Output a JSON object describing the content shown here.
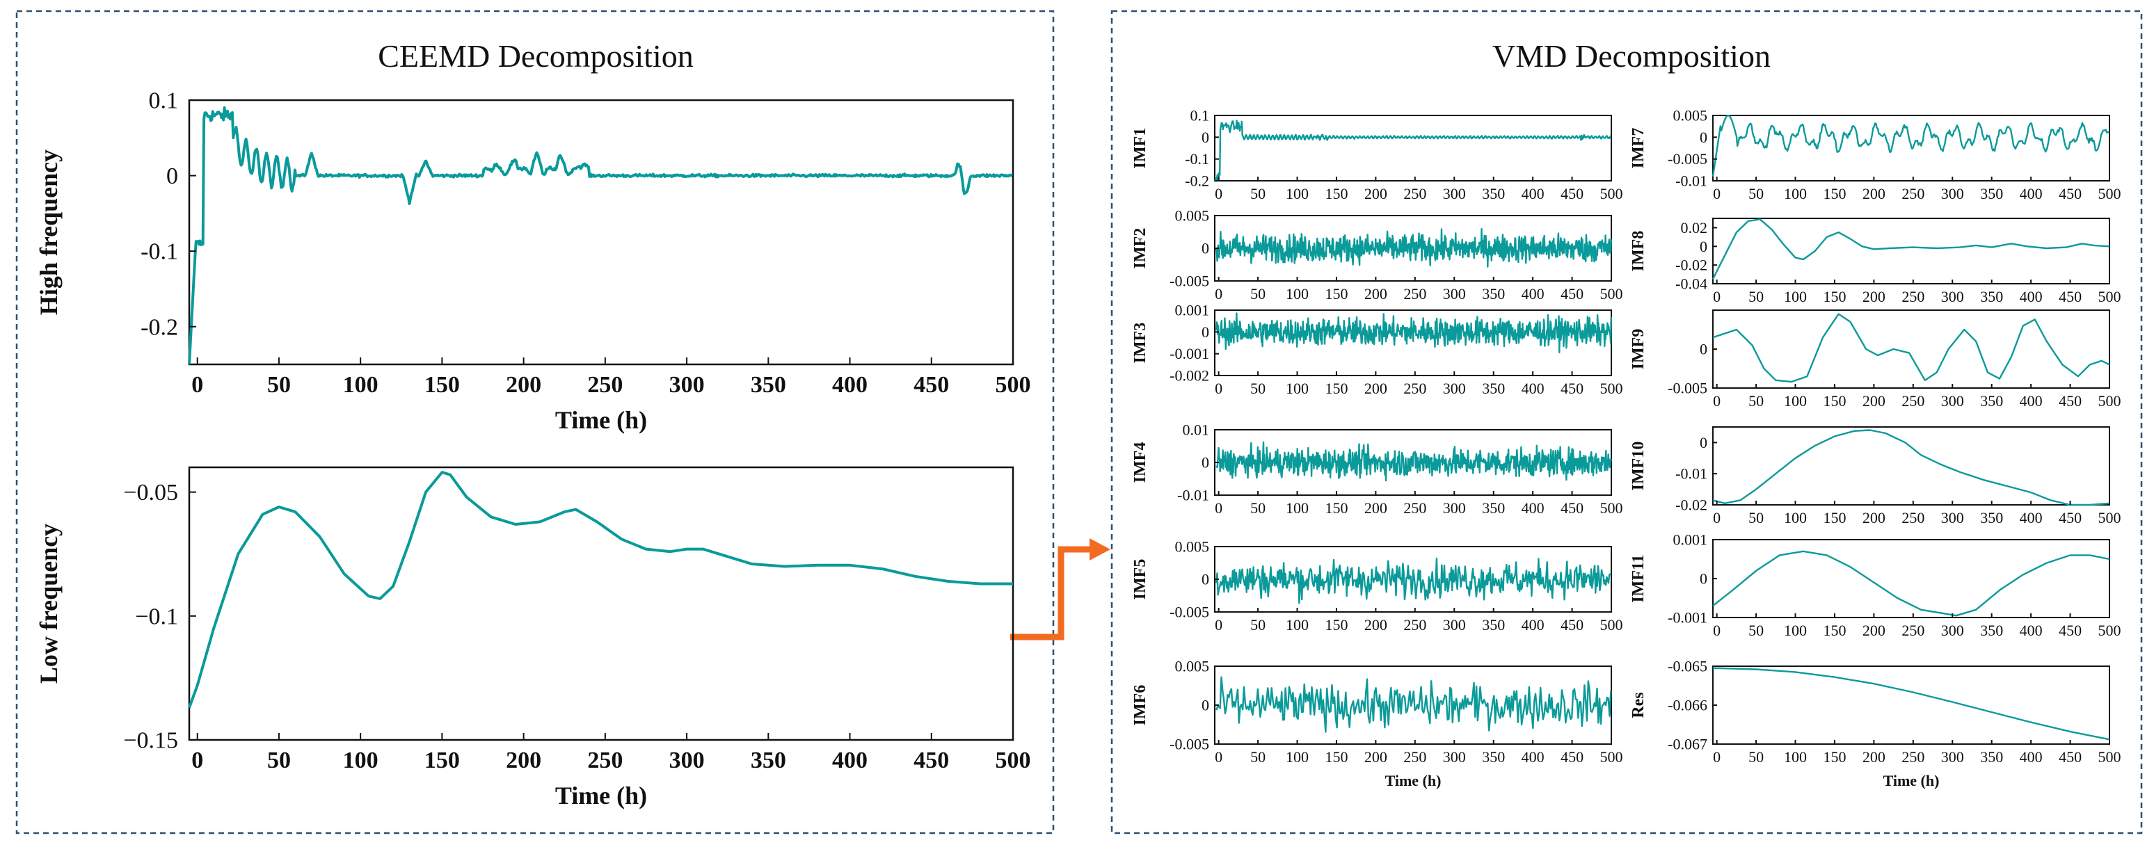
{
  "colors": {
    "line": "#0b9a9a",
    "frame": "#2f4f6f",
    "arrow": "#f26b21",
    "axis": "#111111"
  },
  "panels": {
    "left": {
      "title": "CEEMD Decomposition"
    },
    "right": {
      "title": "VMD Decomposition"
    }
  },
  "chart_data": [
    {
      "id": "ceemd-high",
      "type": "line",
      "panel": "left",
      "ylabel": "High frequency",
      "xlabel": "Time (h)",
      "xlim": [
        -5,
        500
      ],
      "ylim": [
        -0.25,
        0.1
      ],
      "xticks": [
        0,
        50,
        100,
        150,
        200,
        250,
        300,
        350,
        400,
        450,
        500
      ],
      "yticks": [
        0.1,
        0,
        -0.1,
        -0.2
      ],
      "ytick_labels": [
        "0.1",
        "0",
        "-0.1",
        "-0.2"
      ],
      "xtick_labels": [
        "0",
        "50",
        "100",
        "150",
        "200",
        "250",
        "300",
        "350",
        "400",
        "450",
        "500"
      ],
      "shape": "high"
    },
    {
      "id": "ceemd-low",
      "type": "line",
      "panel": "left",
      "ylabel": "Low frequency",
      "xlabel": "Time (h)",
      "xlim": [
        -5,
        500
      ],
      "ylim": [
        -0.15,
        -0.04
      ],
      "xticks": [
        0,
        50,
        100,
        150,
        200,
        250,
        300,
        350,
        400,
        450,
        500
      ],
      "yticks": [
        -0.05,
        -0.1,
        -0.15
      ],
      "ytick_labels": [
        "−0.05",
        "−0.1",
        "−0.15"
      ],
      "xtick_labels": [
        "0",
        "50",
        "100",
        "150",
        "200",
        "250",
        "300",
        "350",
        "400",
        "450",
        "500"
      ],
      "points": [
        [
          -5,
          -0.137
        ],
        [
          0,
          -0.128
        ],
        [
          10,
          -0.105
        ],
        [
          25,
          -0.075
        ],
        [
          40,
          -0.059
        ],
        [
          50,
          -0.056
        ],
        [
          60,
          -0.058
        ],
        [
          75,
          -0.068
        ],
        [
          90,
          -0.083
        ],
        [
          105,
          -0.092
        ],
        [
          112,
          -0.093
        ],
        [
          120,
          -0.088
        ],
        [
          130,
          -0.07
        ],
        [
          140,
          -0.05
        ],
        [
          150,
          -0.042
        ],
        [
          155,
          -0.043
        ],
        [
          165,
          -0.052
        ],
        [
          180,
          -0.06
        ],
        [
          195,
          -0.063
        ],
        [
          210,
          -0.062
        ],
        [
          225,
          -0.058
        ],
        [
          232,
          -0.057
        ],
        [
          245,
          -0.062
        ],
        [
          260,
          -0.069
        ],
        [
          275,
          -0.073
        ],
        [
          290,
          -0.074
        ],
        [
          300,
          -0.073
        ],
        [
          310,
          -0.073
        ],
        [
          325,
          -0.076
        ],
        [
          340,
          -0.079
        ],
        [
          360,
          -0.08
        ],
        [
          380,
          -0.0795
        ],
        [
          400,
          -0.0795
        ],
        [
          420,
          -0.081
        ],
        [
          440,
          -0.084
        ],
        [
          460,
          -0.086
        ],
        [
          480,
          -0.087
        ],
        [
          500,
          -0.087
        ]
      ]
    },
    {
      "id": "imf1",
      "type": "line",
      "panel": "right",
      "ylabel": "IMF1",
      "xlim": [
        -5,
        500
      ],
      "ylim": [
        -0.2,
        0.1
      ],
      "yticks": [
        0.1,
        0,
        -0.1,
        -0.2
      ],
      "ytick_labels": [
        "0.1",
        "0",
        "-0.1",
        "-0.2"
      ],
      "xticks": [
        0,
        50,
        100,
        150,
        200,
        250,
        300,
        350,
        400,
        450,
        500
      ],
      "xtick_labels": [
        "0",
        "50",
        "100",
        "150",
        "200",
        "250",
        "300",
        "350",
        "400",
        "450",
        "500"
      ],
      "shape": "imf1"
    },
    {
      "id": "imf2",
      "type": "line",
      "panel": "right",
      "ylabel": "IMF2",
      "xlim": [
        -5,
        500
      ],
      "ylim": [
        -0.005,
        0.005
      ],
      "yticks": [
        0.005,
        0,
        -0.005
      ],
      "ytick_labels": [
        "0.005",
        "0",
        "-0.005"
      ],
      "xticks": [
        0,
        50,
        100,
        150,
        200,
        250,
        300,
        350,
        400,
        450,
        500
      ],
      "xtick_labels": [
        "0",
        "50",
        "100",
        "150",
        "200",
        "250",
        "300",
        "350",
        "400",
        "450",
        "500"
      ],
      "shape": "noise"
    },
    {
      "id": "imf3",
      "type": "line",
      "panel": "right",
      "ylabel": "IMF3",
      "xlim": [
        -5,
        500
      ],
      "ylim": [
        -0.002,
        0.001
      ],
      "yticks": [
        0.001,
        0,
        -0.001,
        -0.002
      ],
      "ytick_labels": [
        "0.001",
        "0",
        "-0.001",
        "-0.002"
      ],
      "xticks": [
        0,
        50,
        100,
        150,
        200,
        250,
        300,
        350,
        400,
        450,
        500
      ],
      "xtick_labels": [
        "0",
        "50",
        "100",
        "150",
        "200",
        "250",
        "300",
        "350",
        "400",
        "450",
        "500"
      ],
      "shape": "noise"
    },
    {
      "id": "imf4",
      "type": "line",
      "panel": "right",
      "ylabel": "IMF4",
      "xlim": [
        -5,
        500
      ],
      "ylim": [
        -0.01,
        0.01
      ],
      "yticks": [
        0.01,
        0,
        -0.01
      ],
      "ytick_labels": [
        "0.01",
        "0",
        "-0.01"
      ],
      "xticks": [
        0,
        50,
        100,
        150,
        200,
        250,
        300,
        350,
        400,
        450,
        500
      ],
      "xtick_labels": [
        "0",
        "50",
        "100",
        "150",
        "200",
        "250",
        "300",
        "350",
        "400",
        "450",
        "500"
      ],
      "shape": "noise"
    },
    {
      "id": "imf5",
      "type": "line",
      "panel": "right",
      "ylabel": "IMF5",
      "xlim": [
        -5,
        500
      ],
      "ylim": [
        -0.005,
        0.005
      ],
      "yticks": [
        0.005,
        0,
        -0.005
      ],
      "ytick_labels": [
        "0.005",
        "0",
        "-0.005"
      ],
      "xticks": [
        0,
        50,
        100,
        150,
        200,
        250,
        300,
        350,
        400,
        450,
        500
      ],
      "xtick_labels": [
        "0",
        "50",
        "100",
        "150",
        "200",
        "250",
        "300",
        "350",
        "400",
        "450",
        "500"
      ],
      "shape": "noise-mid"
    },
    {
      "id": "imf6",
      "type": "line",
      "panel": "right",
      "ylabel": "IMF6",
      "xlabel": "Time (h)",
      "xlim": [
        -5,
        500
      ],
      "ylim": [
        -0.005,
        0.005
      ],
      "yticks": [
        0.005,
        0,
        -0.005
      ],
      "ytick_labels": [
        "0.005",
        "0",
        "-0.005"
      ],
      "xticks": [
        0,
        50,
        100,
        150,
        200,
        250,
        300,
        350,
        400,
        450,
        500
      ],
      "xtick_labels": [
        "0",
        "50",
        "100",
        "150",
        "200",
        "250",
        "300",
        "350",
        "400",
        "450",
        "500"
      ],
      "shape": "noise-low"
    },
    {
      "id": "imf7",
      "type": "line",
      "panel": "right",
      "ylabel": "IMF7",
      "xlim": [
        -5,
        500
      ],
      "ylim": [
        -0.01,
        0.005
      ],
      "yticks": [
        0.005,
        0,
        -0.005,
        -0.01
      ],
      "ytick_labels": [
        "0.005",
        "0",
        "-0.005",
        "-0.01"
      ],
      "xticks": [
        0,
        50,
        100,
        150,
        200,
        250,
        300,
        350,
        400,
        450,
        500
      ],
      "xtick_labels": [
        "0",
        "50",
        "100",
        "150",
        "200",
        "250",
        "300",
        "350",
        "400",
        "450",
        "500"
      ],
      "shape": "imf7"
    },
    {
      "id": "imf8",
      "type": "line",
      "panel": "right",
      "ylabel": "IMF8",
      "xlim": [
        -5,
        500
      ],
      "ylim": [
        -0.04,
        0.03
      ],
      "yticks": [
        0.02,
        0,
        -0.02,
        -0.04
      ],
      "ytick_labels": [
        "0.02",
        "0",
        "-0.02",
        "-0.04"
      ],
      "xticks": [
        0,
        50,
        100,
        150,
        200,
        250,
        300,
        350,
        400,
        450,
        500
      ],
      "xtick_labels": [
        "0",
        "50",
        "100",
        "150",
        "200",
        "250",
        "300",
        "350",
        "400",
        "450",
        "500"
      ],
      "points": [
        [
          -5,
          -0.035
        ],
        [
          10,
          -0.01
        ],
        [
          25,
          0.015
        ],
        [
          40,
          0.027
        ],
        [
          55,
          0.029
        ],
        [
          70,
          0.018
        ],
        [
          85,
          0.002
        ],
        [
          100,
          -0.012
        ],
        [
          110,
          -0.014
        ],
        [
          125,
          -0.005
        ],
        [
          140,
          0.01
        ],
        [
          155,
          0.015
        ],
        [
          170,
          0.008
        ],
        [
          185,
          0.0
        ],
        [
          200,
          -0.003
        ],
        [
          220,
          -0.002
        ],
        [
          250,
          -0.001
        ],
        [
          280,
          -0.002
        ],
        [
          310,
          -0.001
        ],
        [
          330,
          0.001
        ],
        [
          350,
          -0.001
        ],
        [
          375,
          0.003
        ],
        [
          395,
          0.0
        ],
        [
          420,
          -0.002
        ],
        [
          445,
          -0.001
        ],
        [
          465,
          0.003
        ],
        [
          480,
          0.001
        ],
        [
          500,
          0.0
        ]
      ]
    },
    {
      "id": "imf9",
      "type": "line",
      "panel": "right",
      "ylabel": "IMF9",
      "xlim": [
        -5,
        500
      ],
      "ylim": [
        -0.005,
        0.005
      ],
      "yticks": [
        0,
        -0.005
      ],
      "ytick_labels": [
        "0",
        "-0.005"
      ],
      "xticks": [
        0,
        50,
        100,
        150,
        200,
        250,
        300,
        350,
        400,
        450,
        500
      ],
      "xtick_labels": [
        "0",
        "50",
        "100",
        "150",
        "200",
        "250",
        "300",
        "350",
        "400",
        "450",
        "500"
      ],
      "points": [
        [
          -5,
          0.0015
        ],
        [
          10,
          0.002
        ],
        [
          25,
          0.0025
        ],
        [
          45,
          0.0005
        ],
        [
          60,
          -0.0025
        ],
        [
          75,
          -0.004
        ],
        [
          95,
          -0.0042
        ],
        [
          115,
          -0.0035
        ],
        [
          135,
          0.0015
        ],
        [
          155,
          0.0045
        ],
        [
          170,
          0.0035
        ],
        [
          190,
          0.0
        ],
        [
          205,
          -0.0008
        ],
        [
          225,
          0.0
        ],
        [
          245,
          -0.0005
        ],
        [
          265,
          -0.004
        ],
        [
          280,
          -0.003
        ],
        [
          295,
          0.0
        ],
        [
          315,
          0.0025
        ],
        [
          330,
          0.001
        ],
        [
          345,
          -0.003
        ],
        [
          360,
          -0.0038
        ],
        [
          375,
          -0.001
        ],
        [
          390,
          0.003
        ],
        [
          405,
          0.0038
        ],
        [
          420,
          0.001
        ],
        [
          440,
          -0.002
        ],
        [
          460,
          -0.0035
        ],
        [
          475,
          -0.002
        ],
        [
          490,
          -0.0015
        ],
        [
          500,
          -0.002
        ]
      ]
    },
    {
      "id": "imf10",
      "type": "line",
      "panel": "right",
      "ylabel": "IMF10",
      "xlim": [
        -5,
        500
      ],
      "ylim": [
        -0.02,
        0.005
      ],
      "yticks": [
        0,
        -0.01,
        -0.02
      ],
      "ytick_labels": [
        "0",
        "-0.01",
        "-0.02"
      ],
      "xticks": [
        0,
        50,
        100,
        150,
        200,
        250,
        300,
        350,
        400,
        450,
        500
      ],
      "xtick_labels": [
        "0",
        "50",
        "100",
        "150",
        "200",
        "250",
        "300",
        "350",
        "400",
        "450",
        "500"
      ],
      "points": [
        [
          -5,
          -0.0185
        ],
        [
          10,
          -0.0195
        ],
        [
          30,
          -0.0185
        ],
        [
          50,
          -0.015
        ],
        [
          75,
          -0.01
        ],
        [
          100,
          -0.005
        ],
        [
          125,
          -0.001
        ],
        [
          150,
          0.002
        ],
        [
          175,
          0.0037
        ],
        [
          195,
          0.004
        ],
        [
          215,
          0.003
        ],
        [
          240,
          0.0
        ],
        [
          260,
          -0.004
        ],
        [
          285,
          -0.007
        ],
        [
          310,
          -0.0095
        ],
        [
          340,
          -0.012
        ],
        [
          370,
          -0.014
        ],
        [
          400,
          -0.016
        ],
        [
          425,
          -0.0185
        ],
        [
          450,
          -0.02
        ],
        [
          475,
          -0.02
        ],
        [
          500,
          -0.0195
        ]
      ]
    },
    {
      "id": "imf11",
      "type": "line",
      "panel": "right",
      "ylabel": "IMF11",
      "xlim": [
        -5,
        500
      ],
      "ylim": [
        -0.001,
        0.001
      ],
      "yticks": [
        0.001,
        0,
        -0.001
      ],
      "ytick_labels": [
        "0.001",
        "0",
        "-0.001"
      ],
      "xticks": [
        0,
        50,
        100,
        150,
        200,
        250,
        300,
        350,
        400,
        450,
        500
      ],
      "xtick_labels": [
        "0",
        "50",
        "100",
        "150",
        "200",
        "250",
        "300",
        "350",
        "400",
        "450",
        "500"
      ],
      "points": [
        [
          -5,
          -0.0007
        ],
        [
          20,
          -0.0003
        ],
        [
          50,
          0.0002
        ],
        [
          80,
          0.0006
        ],
        [
          110,
          0.0007
        ],
        [
          140,
          0.0006
        ],
        [
          170,
          0.0003
        ],
        [
          200,
          -0.0001
        ],
        [
          230,
          -0.0005
        ],
        [
          260,
          -0.0008
        ],
        [
          290,
          -0.0009
        ],
        [
          305,
          -0.00095
        ],
        [
          330,
          -0.0008
        ],
        [
          360,
          -0.0003
        ],
        [
          390,
          0.0001
        ],
        [
          420,
          0.0004
        ],
        [
          450,
          0.0006
        ],
        [
          475,
          0.0006
        ],
        [
          500,
          0.0005
        ]
      ]
    },
    {
      "id": "res",
      "type": "line",
      "panel": "right",
      "ylabel": "Res",
      "xlabel": "Time (h)",
      "xlim": [
        -5,
        500
      ],
      "ylim": [
        -0.067,
        -0.065
      ],
      "yticks": [
        -0.065,
        -0.066,
        -0.067
      ],
      "ytick_labels": [
        "-0.065",
        "-0.066",
        "-0.067"
      ],
      "xticks": [
        0,
        50,
        100,
        150,
        200,
        250,
        300,
        350,
        400,
        450,
        500
      ],
      "xtick_labels": [
        "0",
        "50",
        "100",
        "150",
        "200",
        "250",
        "300",
        "350",
        "400",
        "450",
        "500"
      ],
      "points": [
        [
          -5,
          -0.06505
        ],
        [
          0,
          -0.06505
        ],
        [
          50,
          -0.06508
        ],
        [
          100,
          -0.06515
        ],
        [
          150,
          -0.06528
        ],
        [
          200,
          -0.06545
        ],
        [
          250,
          -0.06567
        ],
        [
          300,
          -0.06592
        ],
        [
          350,
          -0.06618
        ],
        [
          400,
          -0.06644
        ],
        [
          450,
          -0.06668
        ],
        [
          500,
          -0.06688
        ]
      ]
    }
  ]
}
